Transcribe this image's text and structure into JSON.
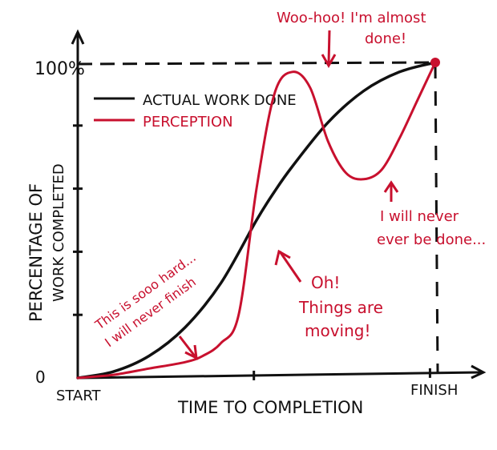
{
  "chart_data": {
    "type": "line",
    "x_start_label": "START",
    "x_end_label": "FINISH",
    "xlabel": "TIME TO COMPLETION",
    "ylabel_lines": [
      "PERCENTAGE OF",
      "WORK COMPLETED"
    ],
    "y_tick_labels": {
      "top": "100%",
      "bottom": "0"
    },
    "xlim": [
      0,
      100
    ],
    "ylim": [
      0,
      100
    ],
    "grid": false,
    "legend_position": "top-left",
    "series": [
      {
        "name": "ACTUAL WORK DONE",
        "color": "#111111",
        "x": [
          0,
          10,
          20,
          30,
          40,
          50,
          55,
          60,
          70,
          80,
          90,
          100
        ],
        "y": [
          0,
          2,
          7,
          16,
          30,
          50,
          59,
          67,
          81,
          91,
          97,
          100
        ]
      },
      {
        "name": "PERCEPTION",
        "color": "#c8102e",
        "x": [
          0,
          10,
          20,
          30,
          35,
          40,
          45,
          50,
          55,
          60,
          65,
          70,
          75,
          80,
          85,
          90,
          95,
          100
        ],
        "y": [
          0,
          1,
          3,
          5,
          7,
          11,
          20,
          60,
          90,
          97,
          92,
          75,
          65,
          63,
          66,
          76,
          88,
          100
        ]
      }
    ],
    "annotations": [
      {
        "id": "almost-done",
        "lines": [
          "Woo-hoo! I'm almost",
          "done!"
        ],
        "color": "#c8102e"
      },
      {
        "id": "never-done",
        "lines": [
          "I will never",
          "ever be done..."
        ],
        "color": "#c8102e"
      },
      {
        "id": "moving",
        "lines": [
          "Oh!",
          "Things are",
          "moving!"
        ],
        "color": "#c8102e"
      },
      {
        "id": "hard",
        "lines": [
          "This is sooo hard...",
          "I will never finish"
        ],
        "color": "#c8102e"
      }
    ]
  }
}
